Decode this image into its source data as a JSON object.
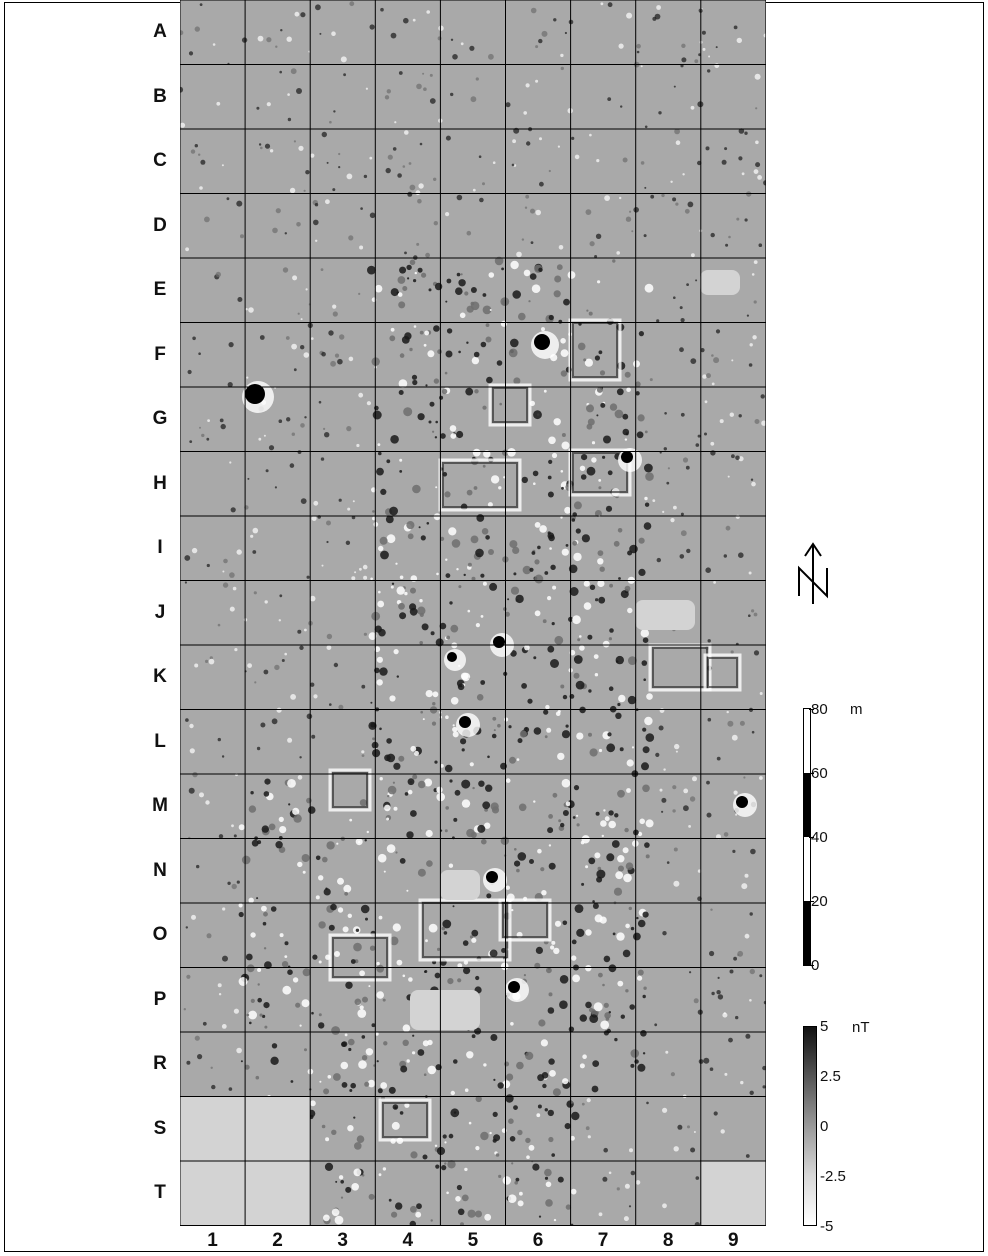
{
  "rows": [
    "A",
    "B",
    "C",
    "D",
    "E",
    "F",
    "G",
    "H",
    "I",
    "J",
    "K",
    "L",
    "M",
    "N",
    "O",
    "P",
    "R",
    "S",
    "T"
  ],
  "columns": [
    "1",
    "2",
    "3",
    "4",
    "5",
    "6",
    "7",
    "8",
    "9"
  ],
  "north_arrow": {
    "label": "N",
    "icon": "north-arrow-icon"
  },
  "distance_scale": {
    "unit": "m",
    "max_label": "80",
    "ticks": [
      "60",
      "40",
      "20",
      "0"
    ]
  },
  "magnetic_scale": {
    "unit": "nT",
    "ticks": [
      "5",
      "2.5",
      "0",
      "-2.5",
      "-5"
    ]
  },
  "colors": {
    "background_map": "#a9a9a9",
    "grid": "#000000",
    "empty_square": "#d3d3d3"
  }
}
